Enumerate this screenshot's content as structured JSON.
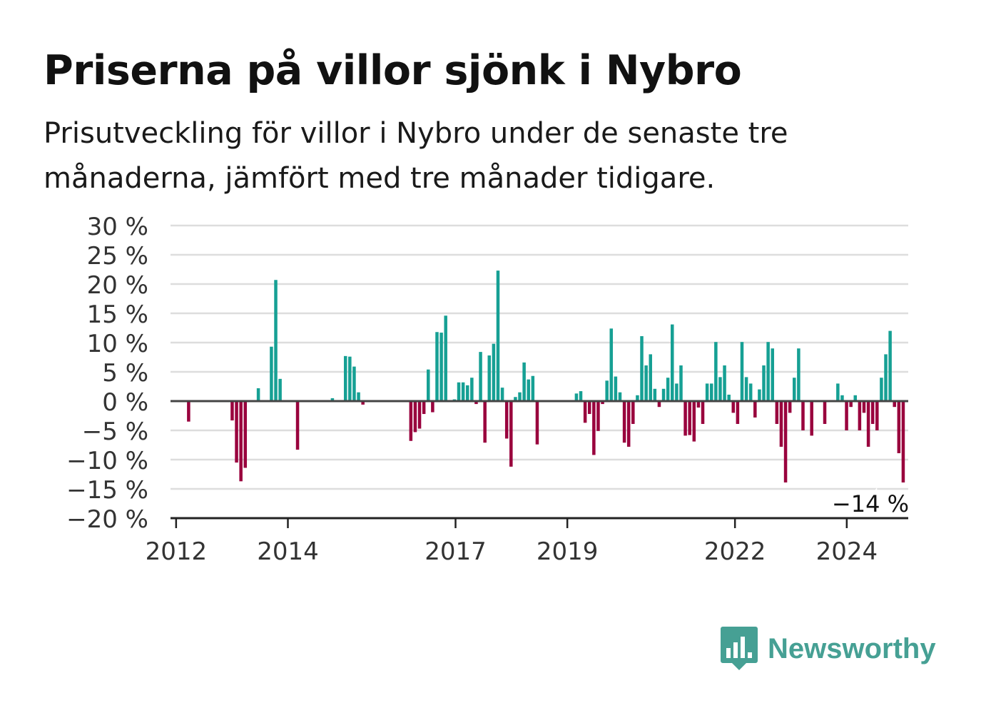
{
  "title": "Priserna på villor sjönk i Nybro",
  "subtitle": "Prisutveckling för villor i Nybro under de senaste tre månaderna, jämfört med tre månader tidigare.",
  "brand": "Newsworthy",
  "colors": {
    "positive": "#16a094",
    "negative": "#99003d",
    "grid": "#dddddd",
    "axis": "#444444",
    "brand": "#46a094"
  },
  "chart_data": {
    "type": "bar",
    "title": "Priserna på villor sjönk i Nybro",
    "xlabel": "",
    "ylabel": "",
    "ylim": [
      -20,
      30
    ],
    "y_ticks": [
      30,
      25,
      20,
      15,
      10,
      5,
      0,
      -5,
      -10,
      -15,
      -20
    ],
    "y_tick_labels": [
      "30 %",
      "25 %",
      "20 %",
      "15 %",
      "10 %",
      "5 %",
      "0 %",
      "−5 %",
      "−10 %",
      "−15 %",
      "−20 %"
    ],
    "x_ticks": [
      {
        "label": "2012",
        "year": 2012
      },
      {
        "label": "2014",
        "year": 2014
      },
      {
        "label": "2017",
        "year": 2017
      },
      {
        "label": "2019",
        "year": 2019
      },
      {
        "label": "2022",
        "year": 2022
      },
      {
        "label": "2024",
        "year": 2024
      }
    ],
    "start_year": 2011.9,
    "end_year": 2025.1,
    "grid": true,
    "last_value_label": "−14 %",
    "values": [
      0,
      0,
      0,
      -3.5,
      0,
      0,
      0,
      0,
      0,
      0,
      0,
      0,
      0,
      -3.3,
      -10.5,
      -13.7,
      -11.4,
      0,
      0,
      2.2,
      0,
      0,
      9.3,
      20.7,
      3.8,
      0,
      0,
      0,
      -8.3,
      0,
      0,
      0,
      0,
      0,
      0,
      0,
      0.5,
      0,
      0,
      7.7,
      7.6,
      5.9,
      1.5,
      -0.6,
      0,
      0,
      0,
      0,
      0,
      0,
      0,
      0,
      0,
      0,
      -6.8,
      -5.3,
      -4.7,
      -2.2,
      5.4,
      -1.9,
      11.8,
      11.7,
      14.6,
      0,
      0.3,
      3.2,
      3.2,
      2.7,
      4.0,
      -0.5,
      8.4,
      -7.1,
      7.8,
      9.8,
      22.3,
      2.3,
      -6.4,
      -11.2,
      0.7,
      1.5,
      6.6,
      3.7,
      4.3,
      -7.4,
      0,
      0,
      0,
      0,
      0,
      0,
      0,
      0,
      1.3,
      1.7,
      -3.7,
      -2.2,
      -9.2,
      -5.1,
      -0.5,
      3.5,
      12.4,
      4.2,
      1.5,
      -7.1,
      -7.8,
      -3.9,
      1.0,
      11.1,
      6.1,
      8.0,
      2.1,
      -1.0,
      2.1,
      4.0,
      13.1,
      3.0,
      6.1,
      -5.9,
      -5.8,
      -6.9,
      -1.1,
      -3.9,
      3.0,
      3.0,
      10.1,
      4.1,
      6.1,
      1.1,
      -2.0,
      -3.9,
      10.1,
      4.1,
      3.0,
      -2.8,
      2.0,
      6.1,
      10.1,
      9.0,
      -3.9,
      -7.8,
      -13.9,
      -2.0,
      4.0,
      9.0,
      -5.0,
      0,
      -5.9,
      0,
      0,
      -3.9,
      0,
      0,
      3.0,
      1.0,
      -5.0,
      -1.0,
      1.0,
      -5.0,
      -2.0,
      -7.8,
      -3.9,
      -5.0,
      4.0,
      8.0,
      12.0,
      -1.0,
      -8.9,
      -13.9
    ]
  }
}
